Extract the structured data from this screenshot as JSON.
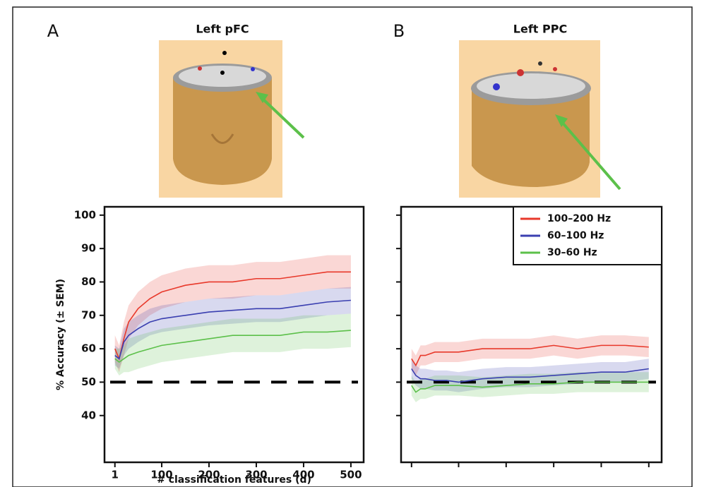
{
  "chart_data": [
    {
      "type": "line",
      "panel_label": "A",
      "title": "Left pFC",
      "x_label": "# classification features (d)",
      "y_label": "% Accuracy (± SEM)",
      "x": [
        1,
        10,
        20,
        30,
        50,
        75,
        100,
        150,
        200,
        250,
        300,
        350,
        400,
        450,
        500
      ],
      "series": [
        {
          "color": "#e8392b",
          "values": [
            60,
            57,
            63,
            68,
            72,
            75,
            77,
            79,
            80,
            80,
            81,
            81,
            82,
            83,
            83
          ],
          "sem": [
            4,
            4,
            5,
            5,
            5,
            5,
            5,
            5,
            5,
            5,
            5,
            5,
            5,
            5,
            5
          ]
        },
        {
          "color": "#3a3fb0",
          "values": [
            58,
            57,
            62,
            64,
            66,
            68,
            69,
            70,
            71,
            71.5,
            72,
            72,
            73,
            74,
            74.5
          ],
          "sem": [
            3,
            3,
            4,
            4,
            4,
            4,
            4,
            4,
            4,
            4,
            4,
            4,
            4,
            4,
            4
          ]
        },
        {
          "color": "#5cc04a",
          "values": [
            57,
            56,
            57,
            58,
            59,
            60,
            61,
            62,
            63,
            64,
            64,
            64,
            65,
            65,
            65.5
          ],
          "sem": [
            3,
            4,
            4,
            5,
            5,
            5,
            5,
            5,
            5,
            5,
            5,
            5,
            5,
            5,
            5
          ]
        }
      ],
      "xlim": [
        -21,
        527
      ],
      "ylim": [
        26,
        102.5
      ],
      "xticks": [
        1,
        100,
        200,
        300,
        400,
        500
      ],
      "yticks": [
        40,
        50,
        60,
        70,
        80,
        90,
        100
      ],
      "tick_labels": true,
      "reference_line": 50
    },
    {
      "type": "line",
      "panel_label": "B",
      "title": "Left PPC",
      "x": [
        1,
        10,
        20,
        30,
        50,
        75,
        100,
        150,
        200,
        250,
        300,
        350,
        400,
        450,
        500
      ],
      "series": [
        {
          "name": "100–200 Hz",
          "color": "#e8392b",
          "values": [
            57,
            55,
            58,
            58,
            59,
            59,
            59,
            60,
            60,
            60,
            61,
            60,
            61,
            61,
            60.5
          ],
          "sem": [
            3,
            3,
            3,
            3,
            3,
            3,
            3,
            3,
            3,
            3,
            3,
            3,
            3,
            3,
            3
          ]
        },
        {
          "name": "60–100 Hz",
          "color": "#3a3fb0",
          "values": [
            54,
            52,
            51,
            51,
            50.5,
            50.5,
            50,
            51,
            51.5,
            51.5,
            52,
            52.5,
            53,
            53,
            54
          ],
          "sem": [
            3,
            3,
            3,
            3,
            3,
            3,
            3,
            3,
            3,
            3,
            3,
            3,
            3,
            3,
            3
          ]
        },
        {
          "name": "30–60 Hz",
          "color": "#5cc04a",
          "values": [
            49,
            47,
            48,
            48,
            49,
            49,
            49,
            48.5,
            49,
            49.5,
            49.5,
            50,
            50,
            50,
            50
          ],
          "sem": [
            3,
            3,
            3,
            3,
            3,
            3,
            3,
            3,
            3,
            3,
            3,
            3,
            3,
            3,
            3
          ]
        }
      ],
      "xlim": [
        -21,
        527
      ],
      "ylim": [
        26,
        102.5
      ],
      "xticks": [
        1,
        100,
        200,
        300,
        400,
        500
      ],
      "yticks": [
        40,
        50,
        60,
        70,
        80,
        90,
        100
      ],
      "tick_labels": false,
      "reference_line": 50,
      "legend": "upper right"
    }
  ]
}
